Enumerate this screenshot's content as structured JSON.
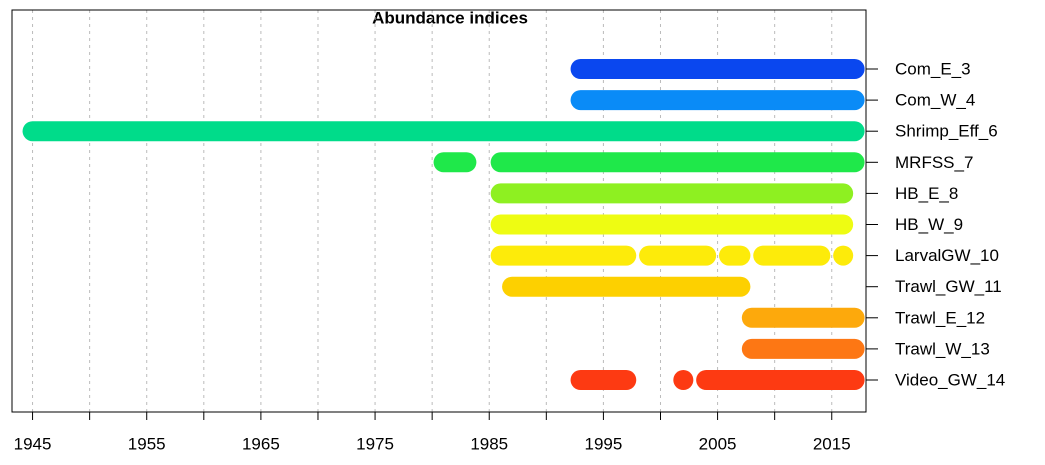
{
  "chart_data": {
    "type": "timeline",
    "title": "Abundance indices",
    "series": [
      {
        "name": "Com_E_3",
        "color": "#0a47ef",
        "segments": [
          [
            1993,
            2017
          ]
        ]
      },
      {
        "name": "Com_W_4",
        "color": "#0a8bf7",
        "segments": [
          [
            1993,
            2017
          ]
        ]
      },
      {
        "name": "Shrimp_Eff_6",
        "color": "#00dc8a",
        "segments": [
          [
            1945,
            2017
          ]
        ]
      },
      {
        "name": "MRFSS_7",
        "color": "#1fe84a",
        "segments": [
          [
            1981,
            1983
          ],
          [
            1986,
            2017
          ]
        ]
      },
      {
        "name": "HB_E_8",
        "color": "#8ef021",
        "segments": [
          [
            1986,
            2016
          ]
        ]
      },
      {
        "name": "HB_W_9",
        "color": "#eefc12",
        "segments": [
          [
            1986,
            2016
          ]
        ]
      },
      {
        "name": "LarvalGW_10",
        "color": "#fdeb0a",
        "segments": [
          [
            1986,
            1997
          ],
          [
            1999,
            2004
          ],
          [
            2006,
            2007
          ],
          [
            2009,
            2014
          ],
          [
            2016,
            2016
          ]
        ]
      },
      {
        "name": "Trawl_GW_11",
        "color": "#fdd000",
        "segments": [
          [
            1987,
            2007
          ]
        ]
      },
      {
        "name": "Trawl_E_12",
        "color": "#fda90c",
        "segments": [
          [
            2008,
            2017
          ]
        ]
      },
      {
        "name": "Trawl_W_13",
        "color": "#fd7714",
        "segments": [
          [
            2008,
            2017
          ]
        ]
      },
      {
        "name": "Video_GW_14",
        "color": "#fd3a12",
        "segments": [
          [
            1993,
            1997
          ],
          [
            2002,
            2002
          ],
          [
            2004,
            2017
          ]
        ]
      }
    ],
    "xlim": [
      1943.2,
      2018
    ],
    "xticks": [
      1945,
      1955,
      1965,
      1975,
      1985,
      1995,
      2005,
      2015
    ],
    "xminor": [
      1950,
      1960,
      1970,
      1980,
      1990,
      2000,
      2010
    ],
    "grid": true
  }
}
